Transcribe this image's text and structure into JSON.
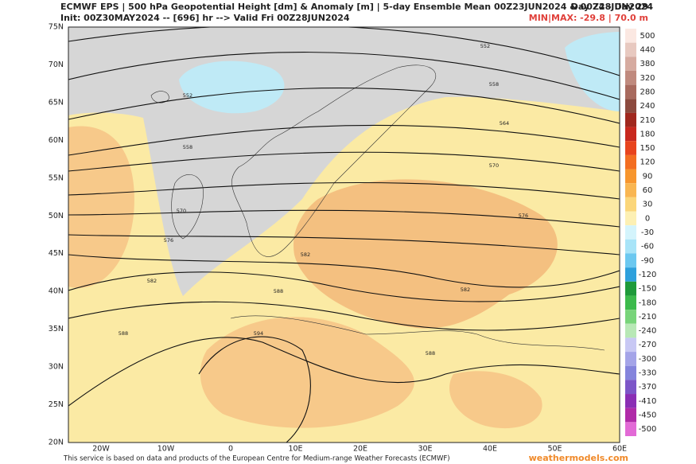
{
  "header": {
    "line1": "ECMWF EPS | 500 hPa Geopotential Height [dm] & Anomaly [m] | 5-day Ensemble Mean 00Z23JUN2024 & 00Z28JUN2024",
    "period": "Day 24 - Day 29",
    "line2": "Init: 00Z30MAY2024 -- [696] hr --> Valid Fri 00Z28JUN2024",
    "minmax": "MIN|MAX: -29.8 | 70.0 m"
  },
  "map": {
    "lat_labels": [
      "75N",
      "70N",
      "65N",
      "60N",
      "55N",
      "50N",
      "45N",
      "40N",
      "35N",
      "30N",
      "25N",
      "20N"
    ],
    "lon_labels": [
      "20W",
      "10W",
      "0",
      "10E",
      "20E",
      "30E",
      "40E",
      "50E",
      "60E"
    ],
    "contour_labels": [
      552,
      552,
      558,
      558,
      564,
      570,
      570,
      576,
      576,
      582,
      582,
      582,
      588,
      588,
      588,
      594
    ]
  },
  "colorbar": {
    "labels": [
      500,
      440,
      380,
      320,
      280,
      240,
      210,
      180,
      150,
      120,
      90,
      60,
      30,
      0,
      -30,
      -60,
      -90,
      -120,
      -150,
      -180,
      -210,
      -240,
      -270,
      -300,
      -330,
      -370,
      -410,
      -450,
      -500
    ],
    "colors": [
      "#fbe8e2",
      "#e8c9c0",
      "#d6aba0",
      "#c08a7e",
      "#a86a5e",
      "#8c4a3e",
      "#a0281e",
      "#c8281e",
      "#e8441e",
      "#f36e22",
      "#f7962e",
      "#f9b652",
      "#fbd67a",
      "#fdf0b4",
      "#d4f4fc",
      "#a8e4f8",
      "#6cc8f0",
      "#2ea0dc",
      "#1e9a3a",
      "#3cba4c",
      "#78d47a",
      "#b8e8b6",
      "#c8c8f4",
      "#a4a4e8",
      "#8484dc",
      "#7c56c8",
      "#8a2eb4",
      "#b02aa8",
      "#e26ad6"
    ]
  },
  "footer": {
    "credit": "This service is based on data and products of the European Centre for Medium-range Weather Forecasts (ECMWF)",
    "site": "weathermodels.com"
  }
}
